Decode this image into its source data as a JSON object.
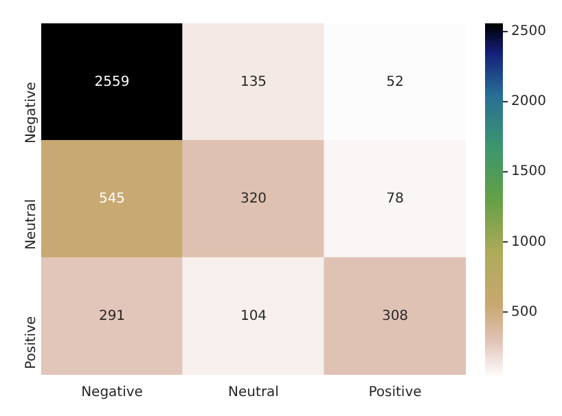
{
  "chart_data": {
    "type": "heatmap",
    "categories": [
      "Negative",
      "Neutral",
      "Positive"
    ],
    "y_categories": [
      "Negative",
      "Neutral",
      "Positive"
    ],
    "cells": [
      [
        2559,
        135,
        52
      ],
      [
        545,
        320,
        78
      ],
      [
        291,
        104,
        308
      ]
    ],
    "data_labels": true,
    "clim": [
      52,
      2559
    ],
    "cticks": [
      500,
      1000,
      1500,
      2000,
      2500
    ]
  }
}
